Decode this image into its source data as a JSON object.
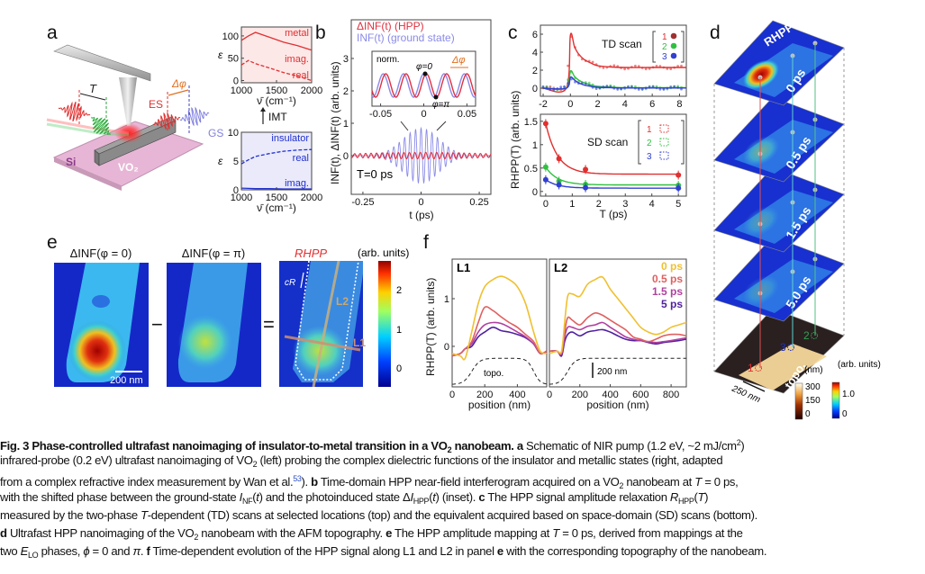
{
  "panel_labels": {
    "a": "a",
    "b": "b",
    "c": "c",
    "d": "d",
    "e": "e",
    "f": "f"
  },
  "panel_a": {
    "delay_label": "T",
    "excited_state_label": "ES",
    "phase_shift_label": "Δφ",
    "ground_state_label": "GS",
    "substrate_label": "Si",
    "nanobeam_label": "VO₂",
    "colors": {
      "pump": "#e03030",
      "probe": "#30b040",
      "ground": "#8080e0",
      "substrate": "#e7b6d6"
    }
  },
  "dielectric": {
    "ylabel": "ε",
    "xlabel": "ν̄ (cm⁻¹)",
    "transition_label": "IMT",
    "metal": {
      "title": "metal",
      "imag_label": "imag.",
      "real_label": "real",
      "x": [
        1000,
        1100,
        1200,
        1400,
        1600,
        1800,
        2000
      ],
      "imag": [
        90,
        100,
        108,
        97,
        86,
        78,
        68
      ],
      "real": [
        35,
        45,
        38,
        28,
        18,
        10,
        0
      ],
      "xticks": [
        "1000",
        "1500",
        "2000"
      ],
      "yticks": [
        "0",
        "50",
        "100"
      ],
      "ylim": [
        -5,
        120
      ],
      "color": "#e03030",
      "fill": "#fde8e8"
    },
    "insulator": {
      "title": "insulator",
      "real_label": "real",
      "imag_label": "imag.",
      "x": [
        1000,
        1100,
        1200,
        1400,
        1600,
        1800,
        2000
      ],
      "real": [
        4.5,
        5.2,
        5.8,
        6.3,
        6.7,
        6.9,
        7.0
      ],
      "imag": [
        0.3,
        0.25,
        0.2,
        0.2,
        0.15,
        0.15,
        0.15
      ],
      "xticks": [
        "1000",
        "1500",
        "2000"
      ],
      "yticks": [
        "0",
        "5",
        "10"
      ],
      "ylim": [
        0,
        10
      ],
      "color": "#2030d0",
      "fill": "#eaeafa"
    }
  },
  "chart_data": [
    {
      "id": "b",
      "type": "line",
      "xlabel": "t (ps)",
      "ylabel": "INF(t), ΔINF(t) (arb. units)",
      "xlim": [
        -0.3,
        0.3
      ],
      "ylim": [
        -1.0,
        3.9
      ],
      "xticks": [
        "-0.25",
        "0",
        "0.25"
      ],
      "yticks": [
        "0",
        "1",
        "2",
        "3"
      ],
      "annotation": "T=0 ps",
      "series": [
        {
          "name": "ΔINF(t) (HPP)",
          "color": "#e03040",
          "envelope_amplitude": 0.1
        },
        {
          "name": "INF(t) (ground state)",
          "color": "#8a8ae8",
          "envelope_amplitude": 0.85
        }
      ],
      "inset": {
        "label": "norm.",
        "xlim": [
          -0.06,
          0.06
        ],
        "xticks": [
          "-0.05",
          "0",
          "0.05"
        ],
        "phase_label": "Δφ",
        "marker_0": "φ=0",
        "marker_pi": "φ=π"
      }
    },
    {
      "id": "c-top",
      "type": "line",
      "title": "TD scan",
      "xlim": [
        -2.2,
        8.5
      ],
      "ylim": [
        -0.9,
        7
      ],
      "xticks": [
        "-2",
        "0",
        "2",
        "4",
        "6",
        "8"
      ],
      "yticks": [
        "0",
        "2",
        "4",
        "6"
      ],
      "legend": [
        "1",
        "2",
        "3"
      ],
      "series": [
        {
          "name": "1",
          "color": "#e03030",
          "x": [
            -2,
            -0.3,
            0,
            0.3,
            0.6,
            1,
            1.5,
            2,
            3,
            4,
            6,
            8.5
          ],
          "y": [
            0,
            0,
            5.9,
            4.6,
            3.8,
            3.2,
            2.8,
            2.5,
            2.35,
            2.3,
            2.3,
            2.3
          ]
        },
        {
          "name": "2",
          "color": "#30c040",
          "x": [
            -2,
            -0.3,
            0,
            0.3,
            0.6,
            1,
            1.5,
            2,
            3,
            4,
            6,
            8.5
          ],
          "y": [
            0,
            0,
            1.9,
            1.3,
            0.9,
            0.6,
            0.35,
            0.2,
            0.1,
            0.05,
            0.05,
            0.05
          ]
        },
        {
          "name": "3",
          "color": "#3040d0",
          "x": [
            -2,
            -0.3,
            0,
            0.3,
            0.6,
            1,
            1.5,
            2,
            3,
            4,
            6,
            8.5
          ],
          "y": [
            0,
            0,
            1.2,
            0.9,
            0.6,
            0.35,
            0.2,
            0.1,
            0.05,
            0.02,
            0.02,
            0.02
          ]
        }
      ]
    },
    {
      "id": "c-bottom",
      "type": "scatter",
      "title": "SD scan",
      "xlabel": "T (ps)",
      "ylabel": "RHPP(T) (arb. units)",
      "xlim": [
        -0.2,
        5.3
      ],
      "ylim": [
        -0.1,
        1.65
      ],
      "xticks": [
        "0",
        "1",
        "2",
        "3",
        "4",
        "5"
      ],
      "yticks": [
        "0",
        "0.5",
        "1",
        "1.5"
      ],
      "legend": [
        "1",
        "2",
        "3"
      ],
      "x": [
        0,
        0.5,
        1.5,
        5
      ],
      "series": [
        {
          "name": "1",
          "color": "#e03030",
          "y": [
            1.45,
            0.7,
            0.47,
            0.35
          ],
          "plateau": 0.37
        },
        {
          "name": "2",
          "color": "#30c040",
          "y": [
            0.52,
            0.22,
            0.15,
            0.13
          ],
          "plateau": 0.14
        },
        {
          "name": "3",
          "color": "#3040d0",
          "y": [
            0.25,
            0.14,
            0.08,
            0.07
          ],
          "plateau": 0.07
        }
      ]
    },
    {
      "id": "f",
      "type": "line",
      "ylabel": "RHPP(T) (arb. units)",
      "xlabel": "position (nm)",
      "ylim": [
        -0.85,
        1.83
      ],
      "yticks": [
        "0",
        "1"
      ],
      "legend": [
        "0 ps",
        "0.5 ps",
        "1.5 ps",
        "5 ps"
      ],
      "colors": [
        "#f0c030",
        "#e06060",
        "#b040a0",
        "#5020a0"
      ],
      "topo_label": "topo.",
      "scalebar_label": "200 nm",
      "panels": [
        {
          "name": "L1",
          "xlim": [
            0,
            580
          ],
          "xticks": [
            "0",
            "200",
            "400"
          ],
          "x": [
            0,
            50,
            80,
            120,
            160,
            200,
            250,
            300,
            350,
            400,
            450,
            500,
            540,
            580
          ],
          "series": [
            [
              -0.15,
              -0.2,
              -0.25,
              0.3,
              0.9,
              1.25,
              1.4,
              1.47,
              1.4,
              1.25,
              0.9,
              0.3,
              -0.1,
              -0.15
            ],
            [
              -0.2,
              -0.15,
              -0.05,
              0.1,
              0.5,
              0.82,
              0.75,
              0.62,
              0.5,
              0.4,
              0.25,
              0.1,
              -0.15,
              -0.1
            ],
            [
              -0.2,
              -0.15,
              -0.05,
              0.05,
              0.3,
              0.45,
              0.5,
              0.48,
              0.4,
              0.3,
              0.2,
              0.05,
              -0.15,
              -0.1
            ],
            [
              -0.2,
              -0.15,
              -0.05,
              0,
              0.2,
              0.3,
              0.4,
              0.33,
              0.3,
              0.25,
              0.18,
              0.05,
              -0.15,
              -0.1
            ]
          ]
        },
        {
          "name": "L2",
          "xlim": [
            0,
            900
          ],
          "xticks": [
            "0",
            "200",
            "400",
            "600",
            "800"
          ],
          "x": [
            0,
            50,
            80,
            100,
            120,
            150,
            200,
            250,
            300,
            350,
            400,
            450,
            500,
            550,
            600,
            650,
            700,
            750,
            800,
            850,
            900
          ],
          "series": [
            [
              -0.15,
              -0.1,
              -0.1,
              0.5,
              1.05,
              1.1,
              1.05,
              1.3,
              1.4,
              1.45,
              1.2,
              1.0,
              0.8,
              0.6,
              0.4,
              0.3,
              0.25,
              0.3,
              0.4,
              0.45,
              0.5
            ],
            [
              -0.1,
              -0.1,
              -0.15,
              0.3,
              0.6,
              0.55,
              0.45,
              0.6,
              0.7,
              0.65,
              0.55,
              0.45,
              0.35,
              0.2,
              0.15,
              0.1,
              0.15,
              0.22,
              0.25,
              0.25,
              0.22
            ],
            [
              -0.1,
              -0.1,
              -0.15,
              0.2,
              0.4,
              0.4,
              0.35,
              0.42,
              0.45,
              0.5,
              0.4,
              0.3,
              0.2,
              0.15,
              0.12,
              0.1,
              0.08,
              0.1,
              0.12,
              0.15,
              0.18
            ],
            [
              -0.1,
              -0.1,
              -0.2,
              0.1,
              0.25,
              0.3,
              0.22,
              0.3,
              0.33,
              0.35,
              0.3,
              0.22,
              0.15,
              0.12,
              0.12,
              0.08,
              0.05,
              0.08,
              0.1,
              0.12,
              0.15
            ]
          ]
        }
      ]
    }
  ],
  "panel_d": {
    "quantity_label": "RHPP",
    "layers": [
      "0 ps",
      "0.5 ps",
      "1.5 ps",
      "5.0 ps"
    ],
    "topo_label": "topo.",
    "scalebar_label": "250 nm",
    "point_labels": [
      "1",
      "2",
      "3"
    ],
    "topo_colorbar": {
      "unit": "(nm)",
      "ticks": [
        "300",
        "150",
        "0"
      ]
    },
    "signal_colorbar": {
      "unit": "(arb. units)",
      "ticks": [
        "1.0",
        "0"
      ]
    }
  },
  "panel_e": {
    "titles": [
      "ΔINF(φ = 0)",
      "ΔINF(φ = π)",
      "RHPP"
    ],
    "minus": "−",
    "equals": "=",
    "scalebar_label": "200 nm",
    "velocity_label": "cR",
    "line_labels": [
      "L1",
      "L2"
    ],
    "colorbar_unit": "(arb. units)",
    "colorbar_ticks": [
      "2",
      "1",
      "0"
    ]
  },
  "caption": [
    [
      {
        "t": "Fig. 3 Phase-controlled ultrafast nanoimaging of insulator-to-metal transition in a VO",
        "b": 1
      },
      {
        "t": "2",
        "b": 1,
        "sub": 1
      },
      {
        "t": " nanobeam. a",
        "b": 1
      },
      {
        "t": " Schematic of NIR pump (1.2 eV, ~2 mJ/cm"
      },
      {
        "t": "2",
        "sup": 1
      },
      {
        "t": ")"
      }
    ],
    [
      {
        "t": "infrared-probe (0.2 eV) ultrafast nanoimaging of VO"
      },
      {
        "t": "2",
        "sub": 1
      },
      {
        "t": " (left) probing the complex dielectric functions of the insulator and metallic states (right, adapted"
      }
    ],
    [
      {
        "t": "from a complex refractive index measurement by Wan et al."
      },
      {
        "t": "53",
        "sup": 1,
        "ref": 1
      },
      {
        "t": "). "
      },
      {
        "t": "b",
        "b": 1
      },
      {
        "t": " Time-domain HPP near-field interferogram acquired on a VO"
      },
      {
        "t": "2",
        "sub": 1
      },
      {
        "t": " nanobeam at "
      },
      {
        "t": "T",
        "i": 1
      },
      {
        "t": " = 0 ps,"
      }
    ],
    [
      {
        "t": "with the shifted phase between the ground-state "
      },
      {
        "t": "I",
        "i": 1
      },
      {
        "t": "NF",
        "sub": 1
      },
      {
        "t": "("
      },
      {
        "t": "t",
        "i": 1
      },
      {
        "t": ") and the photoinduced state Δ"
      },
      {
        "t": "I",
        "i": 1
      },
      {
        "t": "HPP",
        "sub": 1
      },
      {
        "t": "("
      },
      {
        "t": "t",
        "i": 1
      },
      {
        "t": ") (inset). "
      },
      {
        "t": "c",
        "b": 1
      },
      {
        "t": " The HPP signal amplitude relaxation "
      },
      {
        "t": "R",
        "i": 1
      },
      {
        "t": "HPP",
        "sub": 1
      },
      {
        "t": "("
      },
      {
        "t": "T",
        "i": 1
      },
      {
        "t": ")"
      }
    ],
    [
      {
        "t": "measured by the two-phase "
      },
      {
        "t": "T",
        "i": 1
      },
      {
        "t": "-dependent (TD) scans at selected locations (top) and the equivalent acquired based on space-domain (SD) scans (bottom)."
      }
    ],
    [
      {
        "t": "d",
        "b": 1
      },
      {
        "t": " Ultrafast HPP nanoimaging of the VO"
      },
      {
        "t": "2",
        "sub": 1
      },
      {
        "t": " nanobeam with the AFM topography. "
      },
      {
        "t": "e",
        "b": 1
      },
      {
        "t": " The HPP amplitude mapping at "
      },
      {
        "t": "T",
        "i": 1
      },
      {
        "t": " = 0 ps, derived from mappings at the"
      }
    ],
    [
      {
        "t": "two "
      },
      {
        "t": "E",
        "i": 1
      },
      {
        "t": "LO",
        "sub": 1
      },
      {
        "t": " phases, "
      },
      {
        "t": "ϕ",
        "i": 1
      },
      {
        "t": " = 0 and "
      },
      {
        "t": "π",
        "i": 1
      },
      {
        "t": ". "
      },
      {
        "t": "f",
        "b": 1
      },
      {
        "t": " Time-dependent evolution of the HPP signal along L1 and L2 in panel "
      },
      {
        "t": "e",
        "b": 1
      },
      {
        "t": " with the corresponding topography of the nanobeam."
      }
    ]
  ]
}
